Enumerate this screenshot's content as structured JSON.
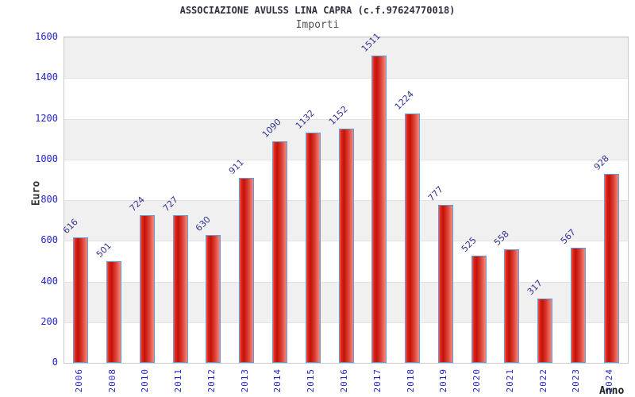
{
  "header": {
    "title": "ASSOCIAZIONE AVULSS LINA CAPRA (c.f.97624770018)",
    "subtitle": "Importi"
  },
  "chart_data": {
    "type": "bar",
    "title": "ASSOCIAZIONE AVULSS LINA CAPRA (c.f.97624770018)",
    "subtitle": "Importi",
    "xlabel": "Anno",
    "ylabel": "Euro",
    "categories": [
      "2006",
      "2008",
      "2010",
      "2011",
      "2012",
      "2013",
      "2014",
      "2015",
      "2016",
      "2017",
      "2018",
      "2019",
      "2020",
      "2021",
      "2022",
      "2023",
      "2024"
    ],
    "values": [
      616,
      501,
      724,
      727,
      630,
      911,
      1090,
      1132,
      1152,
      1511,
      1224,
      777,
      525,
      558,
      317,
      567,
      928
    ],
    "ylim": [
      0,
      1600
    ],
    "ytick_step": 200,
    "yticks": [
      "0",
      "200",
      "400",
      "600",
      "800",
      "1000",
      "1200",
      "1400",
      "1600"
    ],
    "grid": "horizontal-bands-alternating",
    "legend": "none",
    "colors": {
      "bar_fill_main": "#d93a2e",
      "bar_fill_dark": "#c3130a",
      "bar_fill_light": "#ff5a4d",
      "bar_border": "#55a0e0",
      "band_gray": "#f0f0f0",
      "band_white": "#ffffff",
      "plot_border": "#cccccc",
      "tick_text": "#2424cc",
      "value_label_text": "#32328f",
      "title_text": "#2f2f40",
      "subtitle_text": "#555555",
      "axis_title_text": "#333333"
    }
  }
}
